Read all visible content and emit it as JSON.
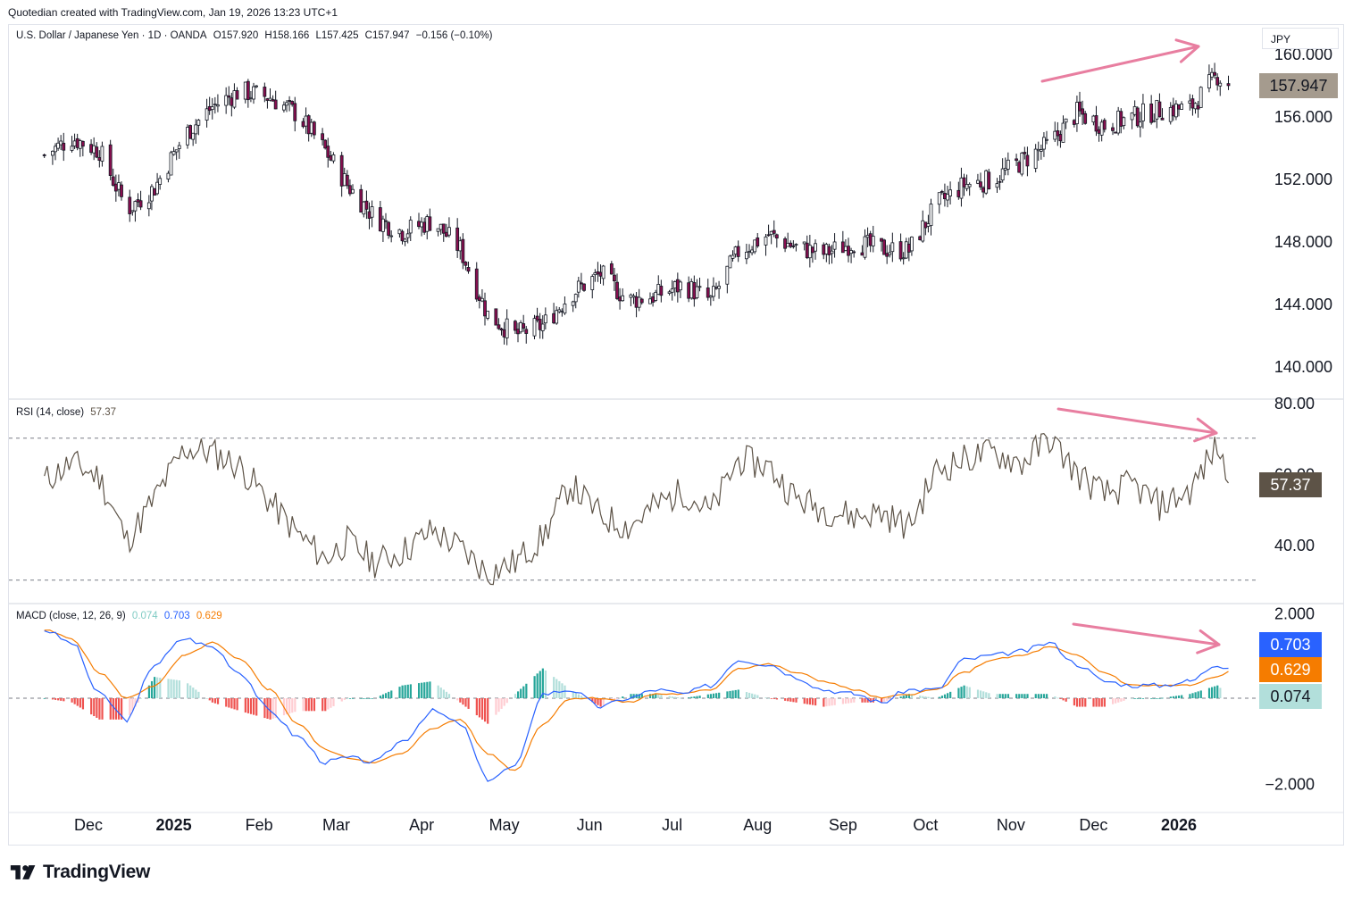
{
  "header": {
    "credit": "Quotedian created with TradingView.com, Jan 19, 2026 13:23 UTC+1"
  },
  "currency_label": "JPY",
  "price_legend": {
    "symbol": "U.S. Dollar / Japanese Yen · 1D · OANDA",
    "open": "O157.920",
    "high": "H158.166",
    "low": "L157.425",
    "close": "C157.947",
    "change": "−0.156 (−0.10%)"
  },
  "rsi_legend": {
    "label": "RSI (14, close)",
    "value": "57.37"
  },
  "macd_legend": {
    "label": "MACD (close, 12, 26, 9)",
    "hist": "0.074",
    "macd": "0.703",
    "signal": "0.629"
  },
  "tags": {
    "price": "157.947",
    "rsi": "57.37",
    "macd": "0.703",
    "signal": "0.629",
    "hist": "0.074"
  },
  "brand": {
    "name": "TradingView"
  },
  "colors": {
    "up": "#ffffff",
    "down": "#880e4f",
    "wick": "#131722",
    "rsi": "#5d5347",
    "macd": "#2962ff",
    "signal": "#f57c00",
    "hist_pos_strong": "#26a69a",
    "hist_pos_weak": "#b2dfdb",
    "hist_neg_strong": "#ef5350",
    "hist_neg_weak": "#ffcdd2",
    "arrow": "#e87ea0",
    "price_tag": "#a59b8e",
    "rsi_tag": "#5d5347",
    "macd_tag": "#2962ff",
    "signal_tag": "#f57c00",
    "hist_tag": "#b2dfdb"
  },
  "chart_data": [
    {
      "type": "candlestick",
      "title": "U.S. Dollar / Japanese Yen · 1D · OANDA",
      "ylim": [
        138.6,
        160.9
      ],
      "y_ticks": [
        140,
        144,
        148,
        152,
        156,
        160
      ],
      "y_tick_labels": [
        "140.000",
        "144.000",
        "148.000",
        "152.000",
        "156.000",
        "160.000"
      ],
      "x_tick_labels": [
        "Dec",
        "2025",
        "Feb",
        "Mar",
        "Apr",
        "May",
        "Jun",
        "Jul",
        "Aug",
        "Sep",
        "Oct",
        "Nov",
        "Dec",
        "2026"
      ],
      "x_dates": [
        "2024-11-15",
        "2024-11-25",
        "2024-12-05",
        "2024-12-15",
        "2024-12-25",
        "2025-01-05",
        "2025-01-15",
        "2025-01-25",
        "2025-02-05",
        "2025-02-15",
        "2025-02-25",
        "2025-03-05",
        "2025-03-15",
        "2025-03-25",
        "2025-04-05",
        "2025-04-15",
        "2025-04-25",
        "2025-05-05",
        "2025-05-15",
        "2025-05-25",
        "2025-06-05",
        "2025-06-15",
        "2025-06-25",
        "2025-07-05",
        "2025-07-15",
        "2025-07-25",
        "2025-08-05",
        "2025-08-15",
        "2025-08-25",
        "2025-09-05",
        "2025-09-15",
        "2025-09-25",
        "2025-10-05",
        "2025-10-15",
        "2025-10-25",
        "2025-11-05",
        "2025-11-15",
        "2025-11-25",
        "2025-12-05",
        "2025-12-15",
        "2025-12-25",
        "2026-01-05",
        "2026-01-15",
        "2026-01-19"
      ],
      "close": [
        153.5,
        154.6,
        153.8,
        150.0,
        151.4,
        154.8,
        156.6,
        157.6,
        157.2,
        156.1,
        153.8,
        151.6,
        149.5,
        148.6,
        149.3,
        147.5,
        143.3,
        142.0,
        142.6,
        144.6,
        145.9,
        144.2,
        144.5,
        145.2,
        144.2,
        147.3,
        148.4,
        147.6,
        147.2,
        147.9,
        147.5,
        147.4,
        150.3,
        151.6,
        151.9,
        153.1,
        154.2,
        156.2,
        155.4,
        155.9,
        156.4,
        156.5,
        158.6,
        157.95
      ]
    },
    {
      "type": "line",
      "title": "RSI (14, close)",
      "series": [
        {
          "name": "RSI",
          "values": [
            58,
            63,
            59,
            41,
            53,
            67,
            66,
            62,
            52,
            43,
            36,
            41,
            35,
            38,
            44,
            39,
            32,
            35,
            42,
            57,
            48,
            45,
            51,
            55,
            49,
            64,
            62,
            53,
            50,
            48,
            49,
            45,
            61,
            64,
            66,
            63,
            70,
            60,
            54,
            57,
            51,
            55,
            68,
            57.37
          ]
        }
      ],
      "ylim": [
        24,
        80
      ],
      "y_tick_labels": [
        "40.00",
        "60.00",
        "80.00"
      ],
      "levels": [
        70,
        30
      ],
      "last_value": 57.37
    },
    {
      "type": "line",
      "title": "MACD (close, 12, 26, 9)",
      "series": [
        {
          "name": "MACD",
          "values": [
            1.6,
            1.3,
            0.1,
            -0.5,
            0.8,
            1.4,
            1.2,
            0.6,
            -0.3,
            -0.9,
            -1.5,
            -1.4,
            -1.5,
            -1.0,
            -0.3,
            -0.6,
            -1.9,
            -1.6,
            0.1,
            0.2,
            -0.2,
            0.0,
            0.2,
            0.1,
            0.3,
            0.9,
            0.8,
            0.5,
            0.2,
            0.1,
            -0.1,
            0.2,
            0.2,
            0.9,
            1.0,
            1.1,
            1.3,
            0.8,
            0.4,
            0.3,
            0.3,
            0.4,
            0.8,
            0.703
          ]
        },
        {
          "name": "Signal",
          "values": [
            1.6,
            1.4,
            0.6,
            0.0,
            0.3,
            1.0,
            1.3,
            0.9,
            0.2,
            -0.6,
            -1.2,
            -1.4,
            -1.5,
            -1.3,
            -0.7,
            -0.5,
            -1.3,
            -1.7,
            -0.6,
            0.0,
            0.0,
            -0.1,
            0.1,
            0.1,
            0.2,
            0.7,
            0.8,
            0.6,
            0.4,
            0.2,
            0.0,
            0.1,
            0.2,
            0.6,
            0.9,
            1.0,
            1.2,
            1.0,
            0.6,
            0.3,
            0.3,
            0.3,
            0.5,
            0.629
          ]
        },
        {
          "name": "Histogram",
          "values": [
            0.0,
            -0.1,
            -0.5,
            -0.5,
            0.5,
            0.4,
            -0.1,
            -0.3,
            -0.5,
            -0.3,
            -0.3,
            0.0,
            0.0,
            0.3,
            0.4,
            -0.1,
            -0.6,
            0.1,
            0.7,
            0.2,
            -0.2,
            0.1,
            0.1,
            0.0,
            0.1,
            0.2,
            0.0,
            -0.1,
            -0.2,
            -0.1,
            -0.1,
            0.1,
            0.0,
            0.3,
            0.1,
            0.1,
            0.1,
            -0.2,
            -0.2,
            0.0,
            0.0,
            0.1,
            0.3,
            0.074
          ]
        }
      ],
      "ylim": [
        -2.3,
        2.3
      ],
      "y_tick_labels": [
        "2.000",
        "−2.000"
      ]
    }
  ]
}
